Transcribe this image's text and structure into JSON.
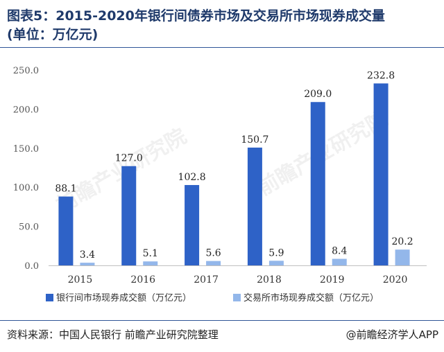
{
  "title_line1": "图表5：2015-2020年银行间债券市场及交易所市场现券成交量",
  "title_line2": "(单位：万亿元)",
  "source": "资料来源：中国人民银行 前瞻产业研究院整理",
  "brand": "@前瞻经济学人APP",
  "watermark": "前瞻产业研究院",
  "colors": {
    "series1": "#2e62c7",
    "series2": "#93b7ea",
    "title": "#1f3a6b"
  },
  "chart_data": {
    "type": "bar",
    "categories": [
      "2015",
      "2016",
      "2017",
      "2018",
      "2019",
      "2020"
    ],
    "series": [
      {
        "name": "银行间市场现券成交额（万亿元）",
        "values": [
          88.1,
          127.0,
          102.8,
          150.7,
          209.0,
          232.8
        ],
        "labels": [
          "88.1",
          "127.0",
          "102.8",
          "150.7",
          "209.0",
          "232.8"
        ]
      },
      {
        "name": "交易所市场现券成交额（万亿元）",
        "values": [
          3.4,
          5.1,
          5.6,
          5.9,
          8.4,
          20.2
        ],
        "labels": [
          "3.4",
          "5.1",
          "5.6",
          "5.9",
          "8.4",
          "20.2"
        ]
      }
    ],
    "yticks": [
      "0.0",
      "50.0",
      "100.0",
      "150.0",
      "200.0",
      "250.0"
    ],
    "ylim": [
      0,
      250
    ],
    "grid": false,
    "legend": "bottom"
  }
}
